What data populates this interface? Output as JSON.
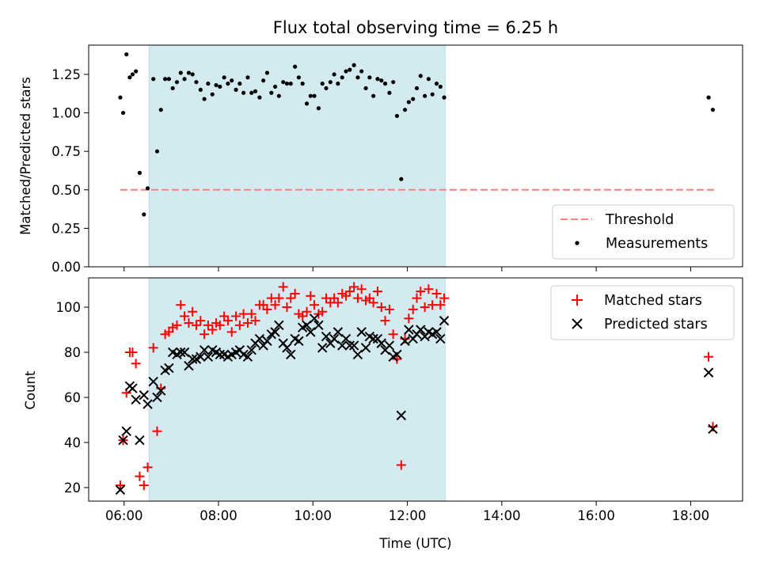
{
  "chart_data": [
    {
      "type": "scatter",
      "title": "Flux total observing time = 6.25 h",
      "ylabel": "Matched/Predicted stars",
      "xlabel": "",
      "x_unit": "hours UTC",
      "xlim": [
        5.25,
        19.1
      ],
      "ylim": [
        0.0,
        1.44
      ],
      "yticks": [
        0.0,
        0.25,
        0.5,
        0.75,
        1.0,
        1.25
      ],
      "ytick_labels": [
        "0.00",
        "0.25",
        "0.50",
        "0.75",
        "1.00",
        "1.25"
      ],
      "xticks": [
        6,
        8,
        10,
        12,
        14,
        16,
        18
      ],
      "grid": false,
      "legend": "bottom-right",
      "shaded_region": {
        "x0": 6.53,
        "x1": 12.8,
        "color": "#d3eaf1"
      },
      "threshold": {
        "name": "Threshold",
        "y": 0.5,
        "x0": 5.92,
        "x1": 18.55,
        "color": "#ff7f7f",
        "style": "dashed"
      },
      "series": [
        {
          "name": "Measurements",
          "marker": "dot",
          "color": "#000000",
          "points": [
            [
              5.92,
              1.1
            ],
            [
              5.98,
              1.0
            ],
            [
              6.05,
              1.38
            ],
            [
              6.12,
              1.23
            ],
            [
              6.18,
              1.25
            ],
            [
              6.25,
              1.27
            ],
            [
              6.33,
              0.61
            ],
            [
              6.42,
              0.34
            ],
            [
              6.5,
              0.51
            ],
            [
              6.62,
              1.22
            ],
            [
              6.7,
              0.75
            ],
            [
              6.78,
              1.02
            ],
            [
              6.87,
              1.22
            ],
            [
              6.95,
              1.22
            ],
            [
              7.03,
              1.16
            ],
            [
              7.12,
              1.2
            ],
            [
              7.2,
              1.26
            ],
            [
              7.28,
              1.22
            ],
            [
              7.37,
              1.26
            ],
            [
              7.45,
              1.25
            ],
            [
              7.53,
              1.2
            ],
            [
              7.62,
              1.15
            ],
            [
              7.7,
              1.09
            ],
            [
              7.78,
              1.19
            ],
            [
              7.87,
              1.12
            ],
            [
              7.95,
              1.18
            ],
            [
              8.03,
              1.17
            ],
            [
              8.12,
              1.23
            ],
            [
              8.2,
              1.19
            ],
            [
              8.28,
              1.21
            ],
            [
              8.37,
              1.15
            ],
            [
              8.45,
              1.19
            ],
            [
              8.53,
              1.13
            ],
            [
              8.62,
              1.23
            ],
            [
              8.7,
              1.13
            ],
            [
              8.78,
              1.14
            ],
            [
              8.87,
              1.1
            ],
            [
              8.95,
              1.21
            ],
            [
              9.03,
              1.26
            ],
            [
              9.12,
              1.13
            ],
            [
              9.2,
              1.17
            ],
            [
              9.28,
              1.11
            ],
            [
              9.37,
              1.2
            ],
            [
              9.45,
              1.19
            ],
            [
              9.53,
              1.19
            ],
            [
              9.62,
              1.3
            ],
            [
              9.7,
              1.23
            ],
            [
              9.78,
              1.19
            ],
            [
              9.87,
              1.06
            ],
            [
              9.95,
              1.11
            ],
            [
              10.03,
              1.11
            ],
            [
              10.12,
              1.03
            ],
            [
              10.2,
              1.19
            ],
            [
              10.28,
              1.16
            ],
            [
              10.37,
              1.2
            ],
            [
              10.45,
              1.25
            ],
            [
              10.53,
              1.19
            ],
            [
              10.62,
              1.23
            ],
            [
              10.7,
              1.27
            ],
            [
              10.78,
              1.28
            ],
            [
              10.87,
              1.31
            ],
            [
              10.95,
              1.23
            ],
            [
              11.03,
              1.27
            ],
            [
              11.12,
              1.16
            ],
            [
              11.2,
              1.23
            ],
            [
              11.28,
              1.11
            ],
            [
              11.37,
              1.22
            ],
            [
              11.45,
              1.21
            ],
            [
              11.53,
              1.19
            ],
            [
              11.62,
              1.13
            ],
            [
              11.7,
              1.2
            ],
            [
              11.78,
              0.98
            ],
            [
              11.87,
              0.57
            ],
            [
              11.95,
              1.02
            ],
            [
              12.03,
              1.07
            ],
            [
              12.12,
              1.09
            ],
            [
              12.2,
              1.16
            ],
            [
              12.28,
              1.24
            ],
            [
              12.37,
              1.11
            ],
            [
              12.45,
              1.22
            ],
            [
              12.53,
              1.12
            ],
            [
              12.62,
              1.19
            ],
            [
              12.7,
              1.17
            ],
            [
              12.78,
              1.1
            ],
            [
              18.38,
              1.1
            ],
            [
              18.47,
              1.02
            ]
          ]
        }
      ]
    },
    {
      "type": "scatter",
      "title": "",
      "xlabel": "Time (UTC)",
      "ylabel": "Count",
      "x_unit": "hours UTC",
      "xlim": [
        5.25,
        19.1
      ],
      "ylim": [
        14,
        113
      ],
      "yticks": [
        20,
        40,
        60,
        80,
        100
      ],
      "xticks": [
        6,
        8,
        10,
        12,
        14,
        16,
        18
      ],
      "xtick_labels": [
        "06:00",
        "08:00",
        "10:00",
        "12:00",
        "14:00",
        "16:00",
        "18:00"
      ],
      "grid": false,
      "legend": "top-right",
      "shaded_region": {
        "x0": 6.53,
        "x1": 12.8,
        "color": "#d3eaf1"
      },
      "series": [
        {
          "name": "Matched stars",
          "marker": "plus",
          "color": "#ff0000",
          "points": [
            [
              5.92,
              21
            ],
            [
              5.98,
              41
            ],
            [
              6.05,
              62
            ],
            [
              6.12,
              80
            ],
            [
              6.18,
              80
            ],
            [
              6.25,
              75
            ],
            [
              6.33,
              25
            ],
            [
              6.42,
              21
            ],
            [
              6.5,
              29
            ],
            [
              6.62,
              82
            ],
            [
              6.7,
              45
            ],
            [
              6.78,
              64
            ],
            [
              6.87,
              88
            ],
            [
              6.95,
              89
            ],
            [
              7.03,
              91
            ],
            [
              7.12,
              92
            ],
            [
              7.2,
              101
            ],
            [
              7.28,
              96
            ],
            [
              7.37,
              93
            ],
            [
              7.45,
              98
            ],
            [
              7.53,
              92
            ],
            [
              7.62,
              94
            ],
            [
              7.7,
              88
            ],
            [
              7.78,
              92
            ],
            [
              7.87,
              90
            ],
            [
              7.95,
              93
            ],
            [
              8.03,
              92
            ],
            [
              8.12,
              96
            ],
            [
              8.2,
              94
            ],
            [
              8.28,
              89
            ],
            [
              8.37,
              96
            ],
            [
              8.45,
              92
            ],
            [
              8.53,
              97
            ],
            [
              8.62,
              93
            ],
            [
              8.7,
              97
            ],
            [
              8.78,
              94
            ],
            [
              8.87,
              101
            ],
            [
              8.95,
              101
            ],
            [
              9.03,
              99
            ],
            [
              9.12,
              104
            ],
            [
              9.2,
              101
            ],
            [
              9.28,
              104
            ],
            [
              9.37,
              109
            ],
            [
              9.45,
              100
            ],
            [
              9.53,
              104
            ],
            [
              9.62,
              106
            ],
            [
              9.7,
              97
            ],
            [
              9.78,
              96
            ],
            [
              9.87,
              98
            ],
            [
              9.95,
              105
            ],
            [
              10.03,
              101
            ],
            [
              10.12,
              97
            ],
            [
              10.2,
              98
            ],
            [
              10.28,
              104
            ],
            [
              10.37,
              102
            ],
            [
              10.45,
              104
            ],
            [
              10.53,
              102
            ],
            [
              10.62,
              106
            ],
            [
              10.7,
              105
            ],
            [
              10.78,
              107
            ],
            [
              10.87,
              109
            ],
            [
              10.95,
              104
            ],
            [
              11.03,
              108
            ],
            [
              11.12,
              103
            ],
            [
              11.2,
              104
            ],
            [
              11.28,
              102
            ],
            [
              11.37,
              107
            ],
            [
              11.45,
              100
            ],
            [
              11.53,
              94
            ],
            [
              11.62,
              99
            ],
            [
              11.7,
              88
            ],
            [
              11.78,
              77
            ],
            [
              11.87,
              30
            ],
            [
              11.95,
              86
            ],
            [
              12.03,
              95
            ],
            [
              12.12,
              99
            ],
            [
              12.2,
              104
            ],
            [
              12.28,
              107
            ],
            [
              12.37,
              100
            ],
            [
              12.45,
              108
            ],
            [
              12.53,
              101
            ],
            [
              12.62,
              106
            ],
            [
              12.7,
              101
            ],
            [
              12.78,
              104
            ],
            [
              18.38,
              78
            ],
            [
              18.47,
              47
            ]
          ]
        },
        {
          "name": "Predicted stars",
          "marker": "x",
          "color": "#000000",
          "points": [
            [
              5.92,
              19
            ],
            [
              5.98,
              41
            ],
            [
              6.05,
              45
            ],
            [
              6.12,
              65
            ],
            [
              6.18,
              64
            ],
            [
              6.25,
              59
            ],
            [
              6.33,
              41
            ],
            [
              6.42,
              61
            ],
            [
              6.5,
              57
            ],
            [
              6.62,
              67
            ],
            [
              6.7,
              60
            ],
            [
              6.78,
              63
            ],
            [
              6.87,
              72
            ],
            [
              6.95,
              73
            ],
            [
              7.03,
              80
            ],
            [
              7.12,
              79
            ],
            [
              7.2,
              80
            ],
            [
              7.28,
              80
            ],
            [
              7.37,
              74
            ],
            [
              7.45,
              77
            ],
            [
              7.53,
              77
            ],
            [
              7.62,
              78
            ],
            [
              7.7,
              81
            ],
            [
              7.78,
              78
            ],
            [
              7.87,
              81
            ],
            [
              7.95,
              80
            ],
            [
              8.03,
              79
            ],
            [
              8.12,
              79
            ],
            [
              8.2,
              78
            ],
            [
              8.28,
              79
            ],
            [
              8.37,
              80
            ],
            [
              8.45,
              81
            ],
            [
              8.53,
              79
            ],
            [
              8.62,
              78
            ],
            [
              8.7,
              81
            ],
            [
              8.78,
              84
            ],
            [
              8.87,
              86
            ],
            [
              8.95,
              83
            ],
            [
              9.03,
              85
            ],
            [
              9.12,
              88
            ],
            [
              9.2,
              89
            ],
            [
              9.28,
              92
            ],
            [
              9.37,
              84
            ],
            [
              9.45,
              82
            ],
            [
              9.53,
              79
            ],
            [
              9.62,
              86
            ],
            [
              9.7,
              85
            ],
            [
              9.78,
              91
            ],
            [
              9.87,
              92
            ],
            [
              9.95,
              89
            ],
            [
              10.03,
              95
            ],
            [
              10.12,
              92
            ],
            [
              10.2,
              82
            ],
            [
              10.28,
              87
            ],
            [
              10.37,
              84
            ],
            [
              10.45,
              86
            ],
            [
              10.53,
              89
            ],
            [
              10.62,
              83
            ],
            [
              10.7,
              86
            ],
            [
              10.78,
              83
            ],
            [
              10.87,
              83
            ],
            [
              10.95,
              79
            ],
            [
              11.03,
              89
            ],
            [
              11.12,
              82
            ],
            [
              11.2,
              87
            ],
            [
              11.28,
              86
            ],
            [
              11.37,
              86
            ],
            [
              11.45,
              84
            ],
            [
              11.53,
              81
            ],
            [
              11.62,
              83
            ],
            [
              11.7,
              78
            ],
            [
              11.78,
              79
            ],
            [
              11.87,
              52
            ],
            [
              11.95,
              85
            ],
            [
              12.03,
              90
            ],
            [
              12.12,
              86
            ],
            [
              12.2,
              88
            ],
            [
              12.28,
              90
            ],
            [
              12.37,
              87
            ],
            [
              12.45,
              89
            ],
            [
              12.53,
              88
            ],
            [
              12.62,
              89
            ],
            [
              12.7,
              86
            ],
            [
              12.78,
              94
            ],
            [
              18.38,
              71
            ],
            [
              18.47,
              46
            ]
          ]
        }
      ]
    }
  ]
}
